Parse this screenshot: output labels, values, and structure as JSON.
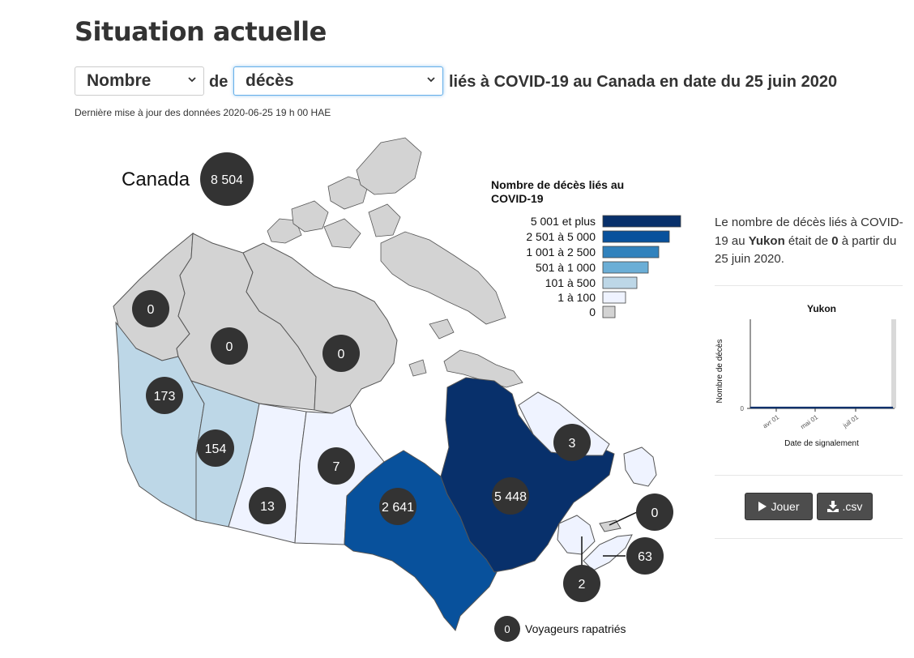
{
  "header": {
    "title": "Situation actuelle",
    "measure_select": {
      "value": "Nombre"
    },
    "joiner": "de",
    "metric_select": {
      "value": "décès"
    },
    "subtitle": "liés à COVID-19 au Canada en date du 25 juin 2020",
    "updated": "Dernière mise à jour des données 2020-06-25 19 h 00 HAE"
  },
  "map": {
    "canada_label": "Canada",
    "canada_total": "8 504",
    "provinces": [
      {
        "id": "yt",
        "value": "0",
        "fill": "#d3d3d3"
      },
      {
        "id": "nt",
        "value": "0",
        "fill": "#d3d3d3"
      },
      {
        "id": "nu",
        "value": "0",
        "fill": "#d3d3d3"
      },
      {
        "id": "bc",
        "value": "173",
        "fill": "#bdd7e7"
      },
      {
        "id": "ab",
        "value": "154",
        "fill": "#bdd7e7"
      },
      {
        "id": "sk",
        "value": "13",
        "fill": "#eff3ff"
      },
      {
        "id": "mb",
        "value": "7",
        "fill": "#eff3ff"
      },
      {
        "id": "on",
        "value": "2 641",
        "fill": "#08519c"
      },
      {
        "id": "qc",
        "value": "5 448",
        "fill": "#08306b"
      },
      {
        "id": "nl",
        "value": "3",
        "fill": "#eff3ff"
      },
      {
        "id": "pe",
        "value": "0",
        "fill": "#d3d3d3"
      },
      {
        "id": "ns",
        "value": "63",
        "fill": "#eff3ff"
      },
      {
        "id": "nb",
        "value": "2",
        "fill": "#eff3ff"
      }
    ],
    "repatriated": {
      "value": "0",
      "label": "Voyageurs rapatriés"
    }
  },
  "legend": {
    "title_lines": [
      "Nombre de décès liés au",
      "COVID-19"
    ],
    "items": [
      {
        "label": "5 001 et plus",
        "color": "#08306b"
      },
      {
        "label": "2 501 à 5 000",
        "color": "#08519c"
      },
      {
        "label": "1 001 à 2 500",
        "color": "#3182bd"
      },
      {
        "label": "501 à 1 000",
        "color": "#6baed6"
      },
      {
        "label": "101 à 500",
        "color": "#bdd7e7"
      },
      {
        "label": "1 à 100",
        "color": "#eff3ff"
      },
      {
        "label": "0",
        "color": "#d3d3d3"
      }
    ]
  },
  "sidebar": {
    "text_before": "Le nombre de décès liés à COVID-19 au ",
    "region": "Yukon",
    "text_middle": " était de ",
    "value": "0",
    "text_after": " à partir du 25 juin 2020.",
    "chart": {
      "title": "Yukon",
      "ylabel": "Nombre de décès",
      "xlabel": "Date de signalement",
      "y_tick": "0",
      "x_ticks": [
        "avr 01",
        "mai 01",
        "juil 01"
      ]
    },
    "play_label": "Jouer",
    "csv_label": ".csv"
  }
}
